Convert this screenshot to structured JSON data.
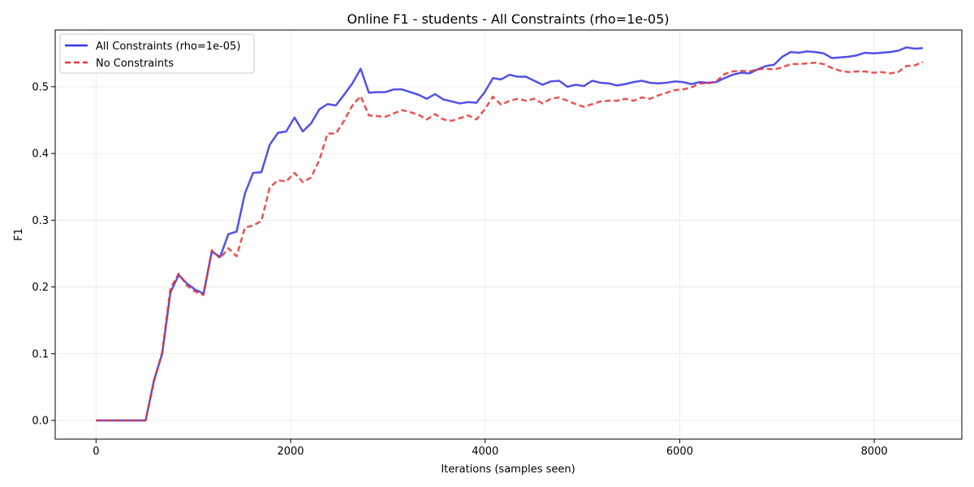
{
  "chart_data": {
    "type": "line",
    "title": "Online F1 - students - All Constraints (rho=1e-05)",
    "xlabel": "Iterations (samples seen)",
    "ylabel": "F1",
    "xlim": [
      -420,
      8900
    ],
    "ylim": [
      -0.028,
      0.585
    ],
    "xticks": [
      0,
      2000,
      4000,
      6000,
      8000
    ],
    "xtick_labels": [
      "0",
      "2000",
      "4000",
      "6000",
      "8000"
    ],
    "yticks": [
      0.0,
      0.1,
      0.2,
      0.3,
      0.4,
      0.5
    ],
    "ytick_labels": [
      "0.0",
      "0.1",
      "0.2",
      "0.3",
      "0.4",
      "0.5"
    ],
    "grid": true,
    "legend_position": "top-left",
    "series": [
      {
        "name": "All Constraints (rho=1e-05)",
        "color": "#3333e6",
        "dash": "solid",
        "points": [
          [
            0,
            0.0
          ],
          [
            85,
            0.0
          ],
          [
            170,
            0.0
          ],
          [
            255,
            0.0
          ],
          [
            340,
            0.0
          ],
          [
            425,
            0.0
          ],
          [
            510,
            0.0
          ],
          [
            595,
            0.06
          ],
          [
            680,
            0.1
          ],
          [
            765,
            0.192
          ],
          [
            850,
            0.218
          ],
          [
            935,
            0.205
          ],
          [
            1020,
            0.196
          ],
          [
            1105,
            0.19
          ],
          [
            1190,
            0.253
          ],
          [
            1275,
            0.245
          ],
          [
            1360,
            0.279
          ],
          [
            1445,
            0.283
          ],
          [
            1530,
            0.34
          ],
          [
            1615,
            0.371
          ],
          [
            1700,
            0.372
          ],
          [
            1785,
            0.413
          ],
          [
            1870,
            0.431
          ],
          [
            1955,
            0.433
          ],
          [
            2040,
            0.454
          ],
          [
            2125,
            0.433
          ],
          [
            2210,
            0.445
          ],
          [
            2295,
            0.466
          ],
          [
            2380,
            0.474
          ],
          [
            2465,
            0.472
          ],
          [
            2550,
            0.488
          ],
          [
            2635,
            0.505
          ],
          [
            2720,
            0.527
          ],
          [
            2805,
            0.491
          ],
          [
            2890,
            0.492
          ],
          [
            2975,
            0.492
          ],
          [
            3060,
            0.496
          ],
          [
            3145,
            0.496
          ],
          [
            3230,
            0.492
          ],
          [
            3315,
            0.488
          ],
          [
            3400,
            0.482
          ],
          [
            3485,
            0.489
          ],
          [
            3570,
            0.481
          ],
          [
            3655,
            0.478
          ],
          [
            3740,
            0.475
          ],
          [
            3825,
            0.477
          ],
          [
            3910,
            0.476
          ],
          [
            3995,
            0.492
          ],
          [
            4080,
            0.513
          ],
          [
            4165,
            0.511
          ],
          [
            4250,
            0.518
          ],
          [
            4335,
            0.515
          ],
          [
            4420,
            0.515
          ],
          [
            4505,
            0.509
          ],
          [
            4590,
            0.503
          ],
          [
            4675,
            0.508
          ],
          [
            4760,
            0.509
          ],
          [
            4845,
            0.5
          ],
          [
            4930,
            0.503
          ],
          [
            5015,
            0.501
          ],
          [
            5100,
            0.509
          ],
          [
            5185,
            0.506
          ],
          [
            5270,
            0.505
          ],
          [
            5355,
            0.502
          ],
          [
            5440,
            0.504
          ],
          [
            5525,
            0.507
          ],
          [
            5610,
            0.509
          ],
          [
            5695,
            0.506
          ],
          [
            5780,
            0.505
          ],
          [
            5865,
            0.506
          ],
          [
            5950,
            0.508
          ],
          [
            6035,
            0.507
          ],
          [
            6120,
            0.504
          ],
          [
            6205,
            0.507
          ],
          [
            6290,
            0.506
          ],
          [
            6375,
            0.507
          ],
          [
            6460,
            0.513
          ],
          [
            6545,
            0.518
          ],
          [
            6630,
            0.521
          ],
          [
            6715,
            0.52
          ],
          [
            6800,
            0.526
          ],
          [
            6885,
            0.531
          ],
          [
            6970,
            0.533
          ],
          [
            7055,
            0.545
          ],
          [
            7140,
            0.552
          ],
          [
            7225,
            0.551
          ],
          [
            7310,
            0.553
          ],
          [
            7395,
            0.552
          ],
          [
            7480,
            0.55
          ],
          [
            7565,
            0.543
          ],
          [
            7650,
            0.544
          ],
          [
            7735,
            0.545
          ],
          [
            7820,
            0.547
          ],
          [
            7905,
            0.551
          ],
          [
            7990,
            0.55
          ],
          [
            8075,
            0.551
          ],
          [
            8160,
            0.552
          ],
          [
            8245,
            0.554
          ],
          [
            8330,
            0.559
          ],
          [
            8415,
            0.557
          ],
          [
            8500,
            0.558
          ]
        ]
      },
      {
        "name": "No Constraints",
        "color": "#e63333",
        "dash": "dashed",
        "points": [
          [
            0,
            0.0
          ],
          [
            85,
            0.0
          ],
          [
            170,
            0.0
          ],
          [
            255,
            0.0
          ],
          [
            340,
            0.0
          ],
          [
            425,
            0.0
          ],
          [
            510,
            0.0
          ],
          [
            595,
            0.058
          ],
          [
            680,
            0.102
          ],
          [
            765,
            0.198
          ],
          [
            850,
            0.22
          ],
          [
            935,
            0.202
          ],
          [
            1020,
            0.193
          ],
          [
            1105,
            0.188
          ],
          [
            1190,
            0.255
          ],
          [
            1275,
            0.243
          ],
          [
            1360,
            0.258
          ],
          [
            1445,
            0.246
          ],
          [
            1530,
            0.289
          ],
          [
            1615,
            0.292
          ],
          [
            1700,
            0.299
          ],
          [
            1785,
            0.349
          ],
          [
            1870,
            0.36
          ],
          [
            1955,
            0.358
          ],
          [
            2040,
            0.371
          ],
          [
            2125,
            0.357
          ],
          [
            2210,
            0.364
          ],
          [
            2295,
            0.39
          ],
          [
            2380,
            0.43
          ],
          [
            2465,
            0.43
          ],
          [
            2550,
            0.449
          ],
          [
            2635,
            0.472
          ],
          [
            2720,
            0.486
          ],
          [
            2805,
            0.457
          ],
          [
            2890,
            0.456
          ],
          [
            2975,
            0.455
          ],
          [
            3060,
            0.46
          ],
          [
            3145,
            0.465
          ],
          [
            3230,
            0.462
          ],
          [
            3315,
            0.458
          ],
          [
            3400,
            0.451
          ],
          [
            3485,
            0.459
          ],
          [
            3570,
            0.451
          ],
          [
            3655,
            0.449
          ],
          [
            3740,
            0.453
          ],
          [
            3825,
            0.457
          ],
          [
            3910,
            0.451
          ],
          [
            3995,
            0.466
          ],
          [
            4080,
            0.485
          ],
          [
            4165,
            0.473
          ],
          [
            4250,
            0.479
          ],
          [
            4335,
            0.482
          ],
          [
            4420,
            0.479
          ],
          [
            4505,
            0.482
          ],
          [
            4590,
            0.475
          ],
          [
            4675,
            0.482
          ],
          [
            4760,
            0.484
          ],
          [
            4845,
            0.479
          ],
          [
            4930,
            0.474
          ],
          [
            5015,
            0.47
          ],
          [
            5100,
            0.474
          ],
          [
            5185,
            0.478
          ],
          [
            5270,
            0.479
          ],
          [
            5355,
            0.479
          ],
          [
            5440,
            0.482
          ],
          [
            5525,
            0.479
          ],
          [
            5610,
            0.484
          ],
          [
            5695,
            0.482
          ],
          [
            5780,
            0.487
          ],
          [
            5865,
            0.491
          ],
          [
            5950,
            0.495
          ],
          [
            6035,
            0.496
          ],
          [
            6120,
            0.499
          ],
          [
            6205,
            0.505
          ],
          [
            6290,
            0.505
          ],
          [
            6375,
            0.508
          ],
          [
            6460,
            0.519
          ],
          [
            6545,
            0.523
          ],
          [
            6630,
            0.524
          ],
          [
            6715,
            0.523
          ],
          [
            6800,
            0.526
          ],
          [
            6885,
            0.527
          ],
          [
            6970,
            0.526
          ],
          [
            7055,
            0.529
          ],
          [
            7140,
            0.534
          ],
          [
            7225,
            0.534
          ],
          [
            7310,
            0.535
          ],
          [
            7395,
            0.536
          ],
          [
            7480,
            0.534
          ],
          [
            7565,
            0.528
          ],
          [
            7650,
            0.524
          ],
          [
            7735,
            0.522
          ],
          [
            7820,
            0.523
          ],
          [
            7905,
            0.523
          ],
          [
            7990,
            0.521
          ],
          [
            8075,
            0.522
          ],
          [
            8160,
            0.52
          ],
          [
            8245,
            0.522
          ],
          [
            8330,
            0.531
          ],
          [
            8415,
            0.532
          ],
          [
            8500,
            0.537
          ]
        ]
      }
    ]
  }
}
